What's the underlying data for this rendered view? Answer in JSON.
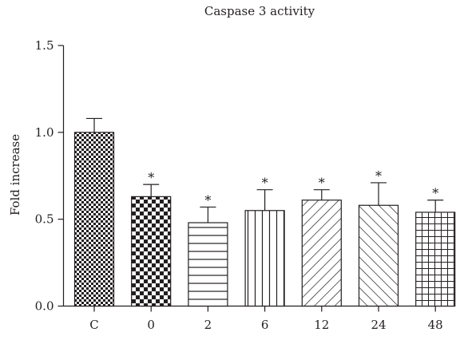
{
  "chart_data": {
    "type": "bar",
    "title": "Caspase 3 activity",
    "xlabel": "",
    "ylabel": "Fold increase",
    "categories": [
      "C",
      "0",
      "2",
      "6",
      "12",
      "24",
      "48"
    ],
    "values": [
      1.0,
      0.63,
      0.48,
      0.55,
      0.61,
      0.58,
      0.54
    ],
    "errors": [
      0.08,
      0.07,
      0.09,
      0.12,
      0.06,
      0.13,
      0.07
    ],
    "significance": [
      "",
      "*",
      "*",
      "*",
      "*",
      "*",
      "*"
    ],
    "fill_patterns": [
      "checkerboard-fine",
      "checkerboard-coarse",
      "horizontal-lines",
      "vertical-lines",
      "diagonal-up",
      "diagonal-down",
      "grid"
    ],
    "ylim": [
      0,
      1.5
    ],
    "yticks": [
      "0.0",
      "0.5",
      "1.0",
      "1.5"
    ],
    "ytick_values": [
      0,
      0.5,
      1.0,
      1.5
    ],
    "grid": false,
    "legend": "none",
    "colors": {
      "ink": "#231f20",
      "background": "#ffffff"
    }
  }
}
